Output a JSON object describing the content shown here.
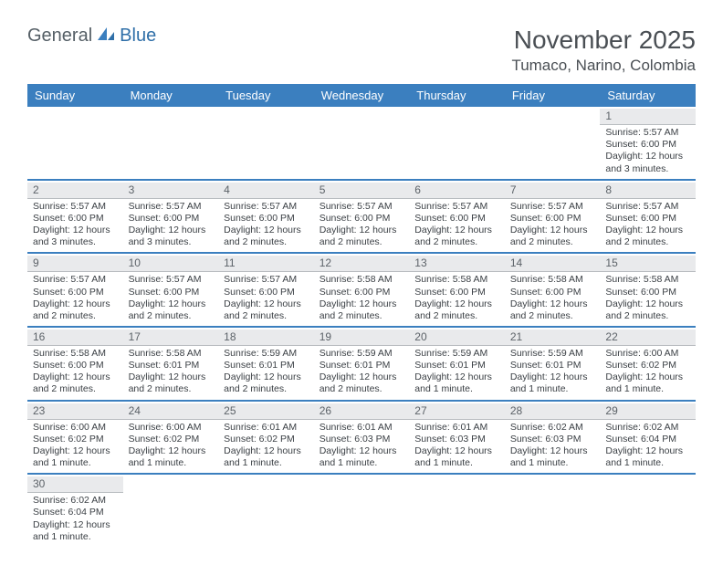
{
  "logo": {
    "part1": "General",
    "part2": "Blue"
  },
  "title": "November 2025",
  "location": "Tumaco, Narino, Colombia",
  "colors": {
    "header_bg": "#3b7fbf",
    "header_text": "#ffffff",
    "daynum_bg": "#e9eaec",
    "daynum_border": "#b8bcc0",
    "week_divider": "#3b7fbf",
    "text": "#3a3f44",
    "title_text": "#4a4f54",
    "logo_gray": "#555f66",
    "logo_blue": "#2f6fa8"
  },
  "layout": {
    "columns": 7,
    "cell_fontsize": 10.5,
    "dayname_fontsize": 13,
    "title_fontsize": 28,
    "location_fontsize": 17
  },
  "day_names": [
    "Sunday",
    "Monday",
    "Tuesday",
    "Wednesday",
    "Thursday",
    "Friday",
    "Saturday"
  ],
  "weeks": [
    [
      null,
      null,
      null,
      null,
      null,
      null,
      {
        "n": "1",
        "sunrise": "Sunrise: 5:57 AM",
        "sunset": "Sunset: 6:00 PM",
        "daylight": "Daylight: 12 hours and 3 minutes."
      }
    ],
    [
      {
        "n": "2",
        "sunrise": "Sunrise: 5:57 AM",
        "sunset": "Sunset: 6:00 PM",
        "daylight": "Daylight: 12 hours and 3 minutes."
      },
      {
        "n": "3",
        "sunrise": "Sunrise: 5:57 AM",
        "sunset": "Sunset: 6:00 PM",
        "daylight": "Daylight: 12 hours and 3 minutes."
      },
      {
        "n": "4",
        "sunrise": "Sunrise: 5:57 AM",
        "sunset": "Sunset: 6:00 PM",
        "daylight": "Daylight: 12 hours and 2 minutes."
      },
      {
        "n": "5",
        "sunrise": "Sunrise: 5:57 AM",
        "sunset": "Sunset: 6:00 PM",
        "daylight": "Daylight: 12 hours and 2 minutes."
      },
      {
        "n": "6",
        "sunrise": "Sunrise: 5:57 AM",
        "sunset": "Sunset: 6:00 PM",
        "daylight": "Daylight: 12 hours and 2 minutes."
      },
      {
        "n": "7",
        "sunrise": "Sunrise: 5:57 AM",
        "sunset": "Sunset: 6:00 PM",
        "daylight": "Daylight: 12 hours and 2 minutes."
      },
      {
        "n": "8",
        "sunrise": "Sunrise: 5:57 AM",
        "sunset": "Sunset: 6:00 PM",
        "daylight": "Daylight: 12 hours and 2 minutes."
      }
    ],
    [
      {
        "n": "9",
        "sunrise": "Sunrise: 5:57 AM",
        "sunset": "Sunset: 6:00 PM",
        "daylight": "Daylight: 12 hours and 2 minutes."
      },
      {
        "n": "10",
        "sunrise": "Sunrise: 5:57 AM",
        "sunset": "Sunset: 6:00 PM",
        "daylight": "Daylight: 12 hours and 2 minutes."
      },
      {
        "n": "11",
        "sunrise": "Sunrise: 5:57 AM",
        "sunset": "Sunset: 6:00 PM",
        "daylight": "Daylight: 12 hours and 2 minutes."
      },
      {
        "n": "12",
        "sunrise": "Sunrise: 5:58 AM",
        "sunset": "Sunset: 6:00 PM",
        "daylight": "Daylight: 12 hours and 2 minutes."
      },
      {
        "n": "13",
        "sunrise": "Sunrise: 5:58 AM",
        "sunset": "Sunset: 6:00 PM",
        "daylight": "Daylight: 12 hours and 2 minutes."
      },
      {
        "n": "14",
        "sunrise": "Sunrise: 5:58 AM",
        "sunset": "Sunset: 6:00 PM",
        "daylight": "Daylight: 12 hours and 2 minutes."
      },
      {
        "n": "15",
        "sunrise": "Sunrise: 5:58 AM",
        "sunset": "Sunset: 6:00 PM",
        "daylight": "Daylight: 12 hours and 2 minutes."
      }
    ],
    [
      {
        "n": "16",
        "sunrise": "Sunrise: 5:58 AM",
        "sunset": "Sunset: 6:00 PM",
        "daylight": "Daylight: 12 hours and 2 minutes."
      },
      {
        "n": "17",
        "sunrise": "Sunrise: 5:58 AM",
        "sunset": "Sunset: 6:01 PM",
        "daylight": "Daylight: 12 hours and 2 minutes."
      },
      {
        "n": "18",
        "sunrise": "Sunrise: 5:59 AM",
        "sunset": "Sunset: 6:01 PM",
        "daylight": "Daylight: 12 hours and 2 minutes."
      },
      {
        "n": "19",
        "sunrise": "Sunrise: 5:59 AM",
        "sunset": "Sunset: 6:01 PM",
        "daylight": "Daylight: 12 hours and 2 minutes."
      },
      {
        "n": "20",
        "sunrise": "Sunrise: 5:59 AM",
        "sunset": "Sunset: 6:01 PM",
        "daylight": "Daylight: 12 hours and 1 minute."
      },
      {
        "n": "21",
        "sunrise": "Sunrise: 5:59 AM",
        "sunset": "Sunset: 6:01 PM",
        "daylight": "Daylight: 12 hours and 1 minute."
      },
      {
        "n": "22",
        "sunrise": "Sunrise: 6:00 AM",
        "sunset": "Sunset: 6:02 PM",
        "daylight": "Daylight: 12 hours and 1 minute."
      }
    ],
    [
      {
        "n": "23",
        "sunrise": "Sunrise: 6:00 AM",
        "sunset": "Sunset: 6:02 PM",
        "daylight": "Daylight: 12 hours and 1 minute."
      },
      {
        "n": "24",
        "sunrise": "Sunrise: 6:00 AM",
        "sunset": "Sunset: 6:02 PM",
        "daylight": "Daylight: 12 hours and 1 minute."
      },
      {
        "n": "25",
        "sunrise": "Sunrise: 6:01 AM",
        "sunset": "Sunset: 6:02 PM",
        "daylight": "Daylight: 12 hours and 1 minute."
      },
      {
        "n": "26",
        "sunrise": "Sunrise: 6:01 AM",
        "sunset": "Sunset: 6:03 PM",
        "daylight": "Daylight: 12 hours and 1 minute."
      },
      {
        "n": "27",
        "sunrise": "Sunrise: 6:01 AM",
        "sunset": "Sunset: 6:03 PM",
        "daylight": "Daylight: 12 hours and 1 minute."
      },
      {
        "n": "28",
        "sunrise": "Sunrise: 6:02 AM",
        "sunset": "Sunset: 6:03 PM",
        "daylight": "Daylight: 12 hours and 1 minute."
      },
      {
        "n": "29",
        "sunrise": "Sunrise: 6:02 AM",
        "sunset": "Sunset: 6:04 PM",
        "daylight": "Daylight: 12 hours and 1 minute."
      }
    ],
    [
      {
        "n": "30",
        "sunrise": "Sunrise: 6:02 AM",
        "sunset": "Sunset: 6:04 PM",
        "daylight": "Daylight: 12 hours and 1 minute."
      },
      null,
      null,
      null,
      null,
      null,
      null
    ]
  ]
}
